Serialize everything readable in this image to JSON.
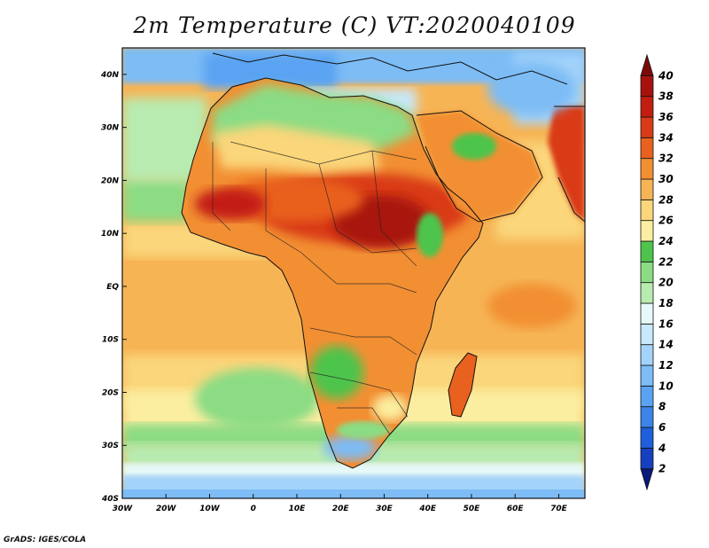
{
  "title": "2m Temperature (C) VT:2020040109",
  "credit": "GrADS: IGES/COLA",
  "map": {
    "projection": "lat-lon",
    "lon_range": [
      -30,
      76
    ],
    "lat_range": [
      -40,
      45
    ],
    "lon_ticks": [
      "30W",
      "20W",
      "10W",
      "0",
      "10E",
      "20E",
      "30E",
      "40E",
      "50E",
      "60E",
      "70E"
    ],
    "lat_ticks": [
      "40N",
      "30N",
      "20N",
      "10N",
      "EQ",
      "10S",
      "20S",
      "30S",
      "40S"
    ],
    "region": "Africa"
  },
  "colorbar": {
    "labels": [
      "2",
      "4",
      "6",
      "8",
      "10",
      "12",
      "14",
      "16",
      "18",
      "20",
      "22",
      "24",
      "26",
      "28",
      "30",
      "32",
      "34",
      "36",
      "38",
      "40"
    ],
    "colors": [
      "#0a1a7a",
      "#1740c0",
      "#1f5fdc",
      "#3a84ea",
      "#5aa3f2",
      "#7dbcf5",
      "#a3d3fa",
      "#c8e8fc",
      "#e6f8f7",
      "#b8ebb0",
      "#8bdc84",
      "#4ec44c",
      "#fbeea0",
      "#fbd67a",
      "#f6b455",
      "#f28f33",
      "#e8611e",
      "#d93b17",
      "#c31d12",
      "#a8120d",
      "#7d0a0a"
    ],
    "extend": "both"
  }
}
